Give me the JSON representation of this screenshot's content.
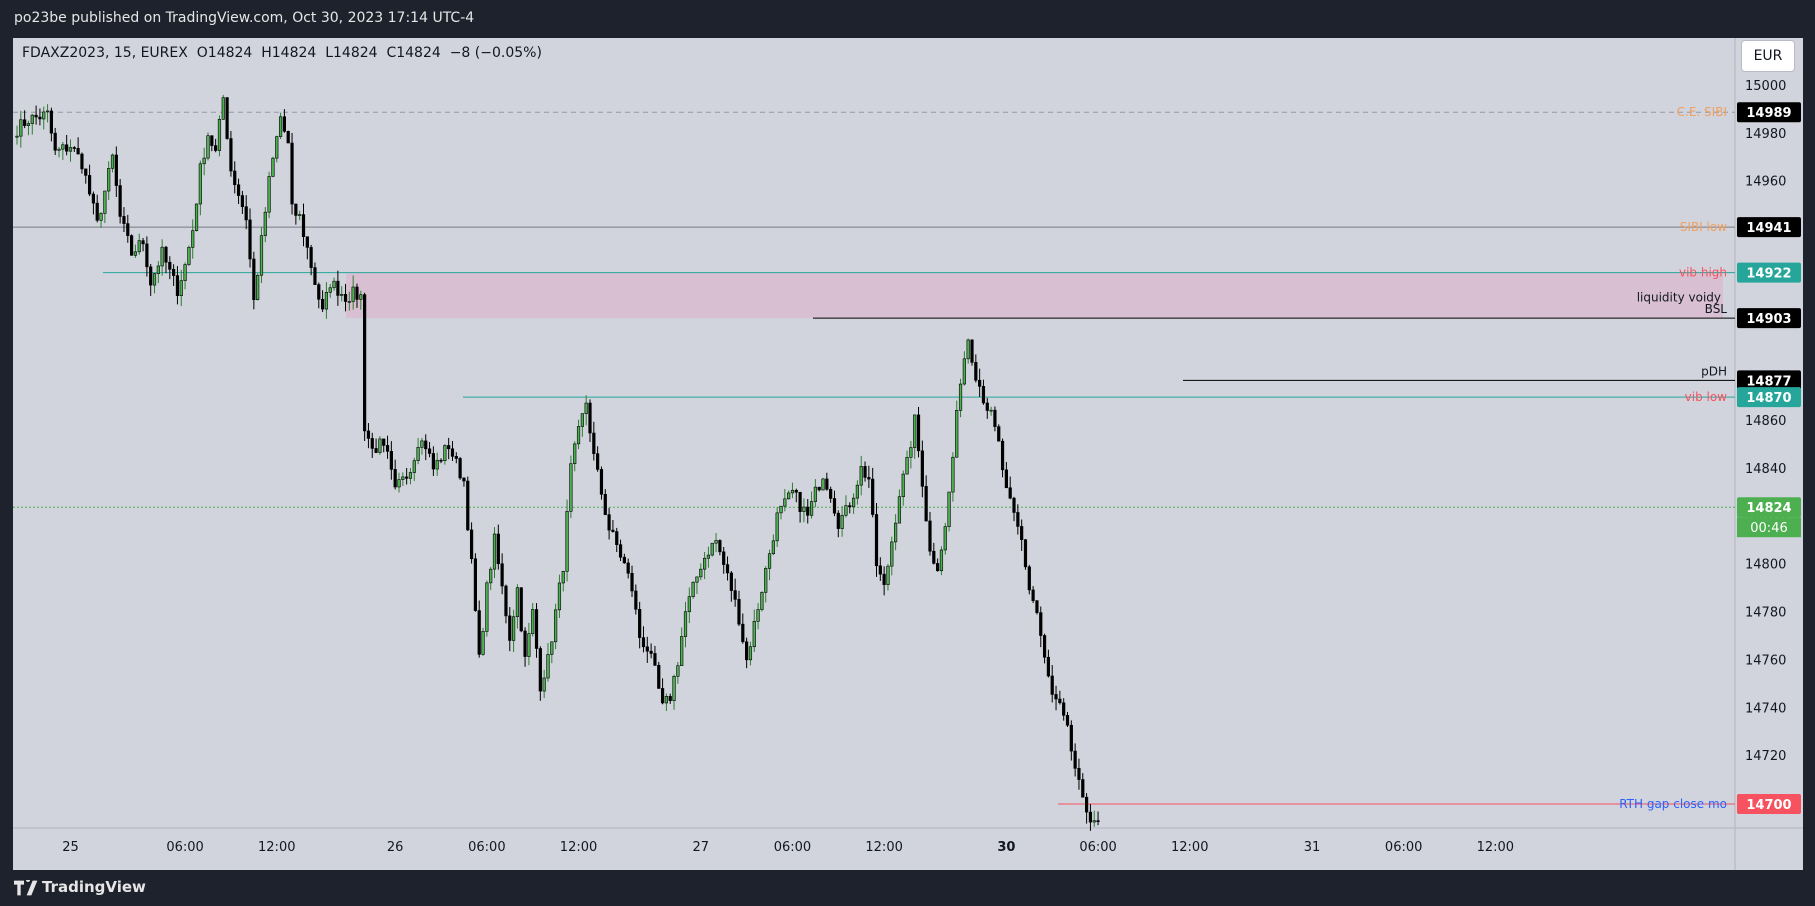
{
  "header": {
    "published": "po23be published on TradingView.com, Oct 30, 2023 17:14 UTC-4"
  },
  "legend": {
    "symbol": "FDAXZ2023, 15, EUREX",
    "open": "O14824",
    "high": "H14824",
    "low": "L14824",
    "close": "C14824",
    "change": "−8 (−0.05%)"
  },
  "currency": "EUR",
  "footer": {
    "brand": "TradingView"
  },
  "colors": {
    "up": "#4caf50",
    "down": "#000000",
    "zone": "#d8bed0",
    "teal": "#26a69a",
    "red": "#f7525f",
    "orange": "#f0a060",
    "blue": "#2962ff"
  },
  "chart_data": {
    "type": "candlestick",
    "ylim": [
      14690,
      15020
    ],
    "y_ticks": [
      14720,
      14740,
      14760,
      14780,
      14800,
      14820,
      14840,
      14860,
      14880,
      14900,
      14920,
      14940,
      14960,
      14980,
      15000
    ],
    "y_tick_labels": [
      "14720",
      "14740",
      "14760",
      "14780",
      "14800",
      "14820",
      "14840",
      "14860",
      "",
      "",
      "",
      "",
      "14960",
      "14980",
      "15000"
    ],
    "x_ticks": [
      {
        "label": "25",
        "bar": 14,
        "bold": false
      },
      {
        "label": "06:00",
        "bar": 44,
        "bold": false
      },
      {
        "label": "12:00",
        "bar": 68,
        "bold": false
      },
      {
        "label": "26",
        "bar": 99,
        "bold": false
      },
      {
        "label": "06:00",
        "bar": 123,
        "bold": false
      },
      {
        "label": "12:00",
        "bar": 147,
        "bold": false
      },
      {
        "label": "27",
        "bar": 179,
        "bold": false
      },
      {
        "label": "06:00",
        "bar": 203,
        "bold": false
      },
      {
        "label": "12:00",
        "bar": 227,
        "bold": false
      },
      {
        "label": "30",
        "bar": 259,
        "bold": true
      },
      {
        "label": "06:00",
        "bar": 283,
        "bold": false
      },
      {
        "label": "12:00",
        "bar": 307,
        "bold": false
      },
      {
        "label": "31",
        "bar": 339,
        "bold": false
      },
      {
        "label": "06:00",
        "bar": 363,
        "bold": false
      },
      {
        "label": "12:00",
        "bar": 387,
        "bold": false
      }
    ],
    "bars_in_view": 390,
    "anchors": [
      [
        0,
        14982
      ],
      [
        3,
        14986
      ],
      [
        8,
        14988
      ],
      [
        10,
        14972
      ],
      [
        14,
        14975
      ],
      [
        17,
        14968
      ],
      [
        19,
        14955
      ],
      [
        21,
        14942
      ],
      [
        25,
        14970
      ],
      [
        27,
        14945
      ],
      [
        30,
        14930
      ],
      [
        33,
        14935
      ],
      [
        35,
        14918
      ],
      [
        38,
        14930
      ],
      [
        40,
        14922
      ],
      [
        42,
        14915
      ],
      [
        44,
        14925
      ],
      [
        46,
        14940
      ],
      [
        48,
        14965
      ],
      [
        50,
        14980
      ],
      [
        52,
        14972
      ],
      [
        54,
        14995
      ],
      [
        56,
        14965
      ],
      [
        58,
        14955
      ],
      [
        60,
        14945
      ],
      [
        62,
        14910
      ],
      [
        64,
        14935
      ],
      [
        66,
        14960
      ],
      [
        69,
        14987
      ],
      [
        71,
        14975
      ],
      [
        72,
        14948
      ],
      [
        74,
        14945
      ],
      [
        76,
        14932
      ],
      [
        78,
        14918
      ],
      [
        80,
        14905
      ],
      [
        82,
        14918
      ],
      [
        84,
        14915
      ],
      [
        86,
        14912
      ],
      [
        88,
        14913
      ],
      [
        90,
        14912
      ],
      [
        91,
        14858
      ],
      [
        93,
        14848
      ],
      [
        95,
        14850
      ],
      [
        97,
        14845
      ],
      [
        99,
        14830
      ],
      [
        101,
        14838
      ],
      [
        103,
        14840
      ],
      [
        105,
        14852
      ],
      [
        107,
        14850
      ],
      [
        109,
        14840
      ],
      [
        111,
        14845
      ],
      [
        113,
        14850
      ],
      [
        115,
        14842
      ],
      [
        117,
        14835
      ],
      [
        119,
        14800
      ],
      [
        121,
        14760
      ],
      [
        123,
        14790
      ],
      [
        125,
        14810
      ],
      [
        127,
        14790
      ],
      [
        129,
        14770
      ],
      [
        131,
        14790
      ],
      [
        133,
        14760
      ],
      [
        135,
        14780
      ],
      [
        137,
        14750
      ],
      [
        139,
        14760
      ],
      [
        141,
        14780
      ],
      [
        143,
        14800
      ],
      [
        145,
        14840
      ],
      [
        147,
        14855
      ],
      [
        149,
        14868
      ],
      [
        151,
        14845
      ],
      [
        153,
        14830
      ],
      [
        155,
        14815
      ],
      [
        157,
        14808
      ],
      [
        159,
        14800
      ],
      [
        161,
        14790
      ],
      [
        163,
        14770
      ],
      [
        165,
        14765
      ],
      [
        167,
        14755
      ],
      [
        169,
        14740
      ],
      [
        171,
        14745
      ],
      [
        173,
        14760
      ],
      [
        175,
        14780
      ],
      [
        177,
        14790
      ],
      [
        179,
        14800
      ],
      [
        181,
        14806
      ],
      [
        183,
        14810
      ],
      [
        185,
        14800
      ],
      [
        187,
        14790
      ],
      [
        189,
        14778
      ],
      [
        191,
        14760
      ],
      [
        193,
        14775
      ],
      [
        195,
        14790
      ],
      [
        197,
        14805
      ],
      [
        199,
        14820
      ],
      [
        201,
        14825
      ],
      [
        203,
        14830
      ],
      [
        205,
        14825
      ],
      [
        207,
        14820
      ],
      [
        209,
        14830
      ],
      [
        211,
        14838
      ],
      [
        213,
        14830
      ],
      [
        215,
        14818
      ],
      [
        217,
        14822
      ],
      [
        219,
        14830
      ],
      [
        221,
        14840
      ],
      [
        223,
        14836
      ],
      [
        225,
        14800
      ],
      [
        227,
        14790
      ],
      [
        229,
        14810
      ],
      [
        231,
        14830
      ],
      [
        233,
        14842
      ],
      [
        235,
        14860
      ],
      [
        237,
        14835
      ],
      [
        239,
        14805
      ],
      [
        241,
        14800
      ],
      [
        243,
        14815
      ],
      [
        245,
        14845
      ],
      [
        247,
        14878
      ],
      [
        249,
        14895
      ],
      [
        251,
        14880
      ],
      [
        253,
        14870
      ],
      [
        255,
        14862
      ],
      [
        257,
        14850
      ],
      [
        259,
        14830
      ],
      [
        261,
        14820
      ],
      [
        263,
        14810
      ],
      [
        265,
        14790
      ],
      [
        267,
        14780
      ],
      [
        269,
        14760
      ],
      [
        271,
        14745
      ],
      [
        273,
        14740
      ],
      [
        275,
        14730
      ],
      [
        277,
        14715
      ],
      [
        279,
        14700
      ],
      [
        281,
        14695
      ],
      [
        283,
        14693
      ]
    ],
    "bar_step_px": 3.82,
    "first_bar_px": 0,
    "levels": [
      {
        "value": 14989,
        "label": "C.E. SIBI",
        "badge": "14989"
      },
      {
        "value": 14941,
        "label": "SIBI low",
        "badge": "14941"
      },
      {
        "value": 14922,
        "label": "vib high",
        "badge": "14922"
      },
      {
        "value": 14903,
        "label": "BSL",
        "badge": "14903"
      },
      {
        "value": 14877,
        "label": "pDH",
        "badge": "14877"
      },
      {
        "value": 14870,
        "label": "vib low",
        "badge": "14870"
      },
      {
        "value": 14824,
        "label": "",
        "badge": "14824",
        "sub_badge": "00:46"
      },
      {
        "value": 14700,
        "label": "RTH gap close mo",
        "badge": "14700"
      }
    ],
    "zone": {
      "from": 14903,
      "to": 14922,
      "label": "liquidity voidy"
    }
  }
}
